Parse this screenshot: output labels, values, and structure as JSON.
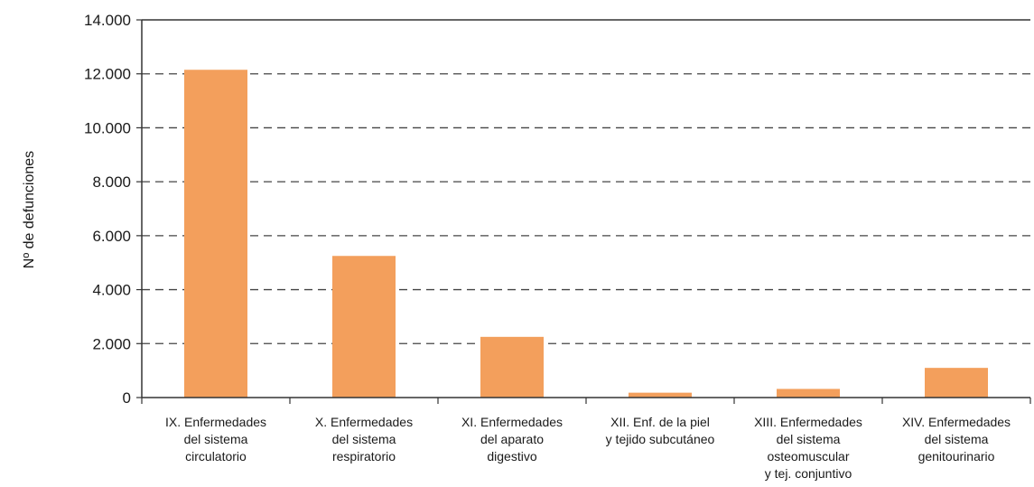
{
  "chart_data": {
    "type": "bar",
    "title": "",
    "xlabel": "",
    "ylabel": "Nº de defunciones",
    "ylim": [
      0,
      14000
    ],
    "yticks": [
      0,
      2000,
      4000,
      6000,
      8000,
      10000,
      12000,
      14000
    ],
    "ytick_labels": [
      "0",
      "2.000",
      "4.000",
      "6.000",
      "8.000",
      "10.000",
      "12.000",
      "14.000"
    ],
    "grid": "horizontal dashed",
    "bar_color": "#f39f5c",
    "categories": [
      [
        "IX. Enfermedades",
        "del sistema",
        "circulatorio"
      ],
      [
        "X. Enfermedades",
        "del sistema",
        "respiratorio"
      ],
      [
        "XI. Enfermedades",
        "del aparato",
        "digestivo"
      ],
      [
        "XII. Enf. de la piel",
        "y tejido subcutáneo"
      ],
      [
        "XIII. Enfermedades",
        "del sistema",
        "osteomuscular",
        "y tej. conjuntivo"
      ],
      [
        "XIV. Enfermedades",
        "del sistema",
        "genitourinario"
      ]
    ],
    "values": [
      12150,
      5250,
      2250,
      180,
      320,
      1100
    ]
  }
}
